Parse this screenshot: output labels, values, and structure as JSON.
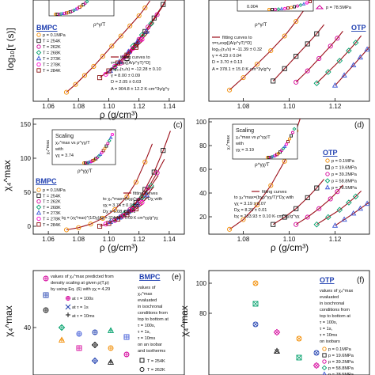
{
  "colors": {
    "fit": "#9b0f1a",
    "series": [
      "#f28c00",
      "#1a1a1a",
      "#d4009a",
      "#00a06b",
      "#3a55d6",
      "#ff00d0",
      "#8a1414",
      "#0a8a3a",
      "#00aacc"
    ]
  },
  "panels": {
    "a": {
      "sample": "BMPC",
      "xlabel": "ρ (g/cm³)",
      "ylabel": "log₁₀[τ (s)]",
      "xticks": [
        "1.06",
        "1.08",
        "1.10",
        "1.12",
        "1.14"
      ],
      "inset_xlabel": "ρ^γ/T",
      "legend": [
        "p = 0.1MPa",
        "T = 254K",
        "T = 262K",
        "T = 268K",
        "T = 273K",
        "T = 278K",
        "T = 284K"
      ],
      "fit_text": [
        "fitting curves to",
        "τ=τ₀exp[(A/ρ^γT)^D]",
        "log₁₀(τ₀/s) = -12.28 ± 0.10",
        "γ = 8.00 ± 0.09",
        "D = 2.05 ± 0.03",
        "A = 904.8 ± 12.2 K·cm^3γ/g^γ"
      ]
    },
    "b": {
      "sample": "OTP",
      "xticks": [
        "1.08",
        "1.10",
        "1.12"
      ],
      "inset_tick": "0.004",
      "inset_xlabel": "ρ^γ/T",
      "legend": [
        "p = 78.5MPa"
      ],
      "fit_text": [
        "fitting curves to",
        "τ=τ₀exp[(A/ρ^γT)^D]",
        "log₁₀(τ₀/s) = -11.39 ± 0.32",
        "γ = 4.23 ± 0.04",
        "D = 3.70 ± 0.13",
        "A = 378.1 ± 15.0 K·cm^3γ/g^γ"
      ]
    },
    "c": {
      "letter": "(c)",
      "sample": "BMPC",
      "xlabel": "ρ (g/cm³)",
      "ylabel": "χ₄^max",
      "yticks": [
        "150",
        "100",
        "50",
        "0"
      ],
      "xticks": [
        "1.06",
        "1.08",
        "1.10",
        "1.12",
        "1.14"
      ],
      "inset_title": [
        "Scaling",
        "χ₄^max vs ρ^γχ/T",
        "with",
        "γχ = 3.74"
      ],
      "inset_ylabel": "χ₄^max",
      "inset_xlabel": "ρ^γχ/T",
      "legend": [
        "p = 0.1MPa",
        "T = 254K",
        "T = 262K",
        "T = 268K",
        "T = 273K",
        "T = 278K",
        "T = 284K"
      ],
      "fit_text": [
        "fitting curves",
        "to χ₄^max=(bχρ^γχ/T)^Dχ with",
        "γχ = 3.74 ± 0.01",
        "Dχ = 6.08 ± 0.01",
        "bχ = (zχ^max)^(1/Dχ)Aχ = 324.40 ± 0.09 K·cm^γχ/g^γχ"
      ]
    },
    "d": {
      "letter": "(d)",
      "sample": "OTP",
      "xlabel": "ρ (g/cm³)",
      "yticks": [
        "100",
        "80",
        "60",
        "40",
        "20"
      ],
      "xticks": [
        "1.08",
        "1.10",
        "1.12"
      ],
      "inset_title": [
        "Scaling",
        "χ₄^max vs ρ^γχ/T",
        "with",
        "γχ = 3.19"
      ],
      "inset_ylabel": "χ₄^max",
      "inset_xlabel": "ρ^γχ/T",
      "legend": [
        "p = 0.1MPa",
        "p = 19.6MPa",
        "p = 39.2MPa",
        "p = 58.8MPa",
        "p = 78.5MPa"
      ],
      "fit_text": [
        "fitting curves",
        "to χ₄^max=(bχρ^γχ/T)^Dχ with",
        "γχ = 3.19 ± 0.07",
        "Dχ = 8.29 ± 0.01",
        "bχ = 233.93 ± 0.10 K·cm^γχ/g^γχ"
      ]
    },
    "e": {
      "letter": "(e)",
      "sample": "BMPC",
      "ylabel": "χ₄^max",
      "ytick": "40",
      "note_left": [
        "values of χ₄^max predicted from",
        "density scaling at given ρ(T,p)",
        "by using Eq. (6) with γχ = 4.29"
      ],
      "legend_left": [
        "at τ = 100s",
        "at τ = 1s",
        "at τ = 10ms"
      ],
      "note_right": [
        "values of",
        "χ₄^max",
        "evaluated",
        "in isochronal",
        "conditions from",
        "top to bottom at",
        "τ = 100s,",
        "τ = 1s,",
        "τ = 10ms",
        "on an isobar",
        "and isotherms"
      ],
      "legend_right": [
        "T = 254K",
        "T = 262K"
      ]
    },
    "f": {
      "letter": "(f)",
      "sample": "OTP",
      "ylabel": "χ₄^max",
      "yticks": [
        "100",
        "80"
      ],
      "note": [
        "values of χ₄^max",
        "evaluated",
        "in isochronal",
        "conditions from",
        "top to bottom at",
        "τ = 100s,",
        "τ = 1s,",
        "τ = 10ms",
        "on isobars"
      ],
      "legend": [
        "p = 0.1MPa",
        "p = 19.6MPa",
        "p = 39.2MPa",
        "p = 58.8MPa",
        "p = 78.5MPa"
      ]
    }
  },
  "chart_data": [
    {
      "type": "scatter",
      "panel": "a",
      "xlabel": "ρ (g/cm³)",
      "ylabel": "log₁₀[τ (s)]",
      "xlim": [
        1.05,
        1.15
      ],
      "ylim": [
        -5,
        4
      ],
      "series": [
        {
          "name": "p = 0.1MPa",
          "x": [
            1.072,
            1.078,
            1.084,
            1.09,
            1.096,
            1.102,
            1.108,
            1.114,
            1.12,
            1.124
          ],
          "y": [
            -4.2,
            -3.5,
            -2.7,
            -1.9,
            -1.0,
            -0.1,
            0.8,
            1.7,
            2.6,
            3.3
          ]
        },
        {
          "name": "T = 254K",
          "x": [
            1.112,
            1.118,
            1.124,
            1.13,
            1.136
          ],
          "y": [
            -1.2,
            0.0,
            1.2,
            2.4,
            3.6
          ]
        },
        {
          "name": "T = 262K",
          "x": [
            1.108,
            1.114,
            1.12,
            1.126,
            1.132
          ],
          "y": [
            -1.6,
            -0.6,
            0.5,
            1.6,
            2.7
          ]
        },
        {
          "name": "T = 268K",
          "x": [
            1.104,
            1.11,
            1.116,
            1.122,
            1.128
          ],
          "y": [
            -2.0,
            -1.1,
            -0.1,
            0.9,
            1.9
          ]
        },
        {
          "name": "T = 273K",
          "x": [
            1.101,
            1.107,
            1.113,
            1.119,
            1.125
          ],
          "y": [
            -2.3,
            -1.5,
            -0.6,
            0.3,
            1.2
          ]
        },
        {
          "name": "T = 278K",
          "x": [
            1.098,
            1.104,
            1.11,
            1.116,
            1.122
          ],
          "y": [
            -2.6,
            -1.9,
            -1.1,
            -0.3,
            0.5
          ]
        },
        {
          "name": "T = 284K",
          "x": [
            1.094,
            1.1,
            1.106,
            1.112,
            1.118
          ],
          "y": [
            -2.9,
            -2.3,
            -1.6,
            -0.9,
            -0.2
          ]
        }
      ]
    },
    {
      "type": "scatter",
      "panel": "b",
      "xlim": [
        1.065,
        1.135
      ],
      "ylim": [
        -6,
        3
      ],
      "series": [
        {
          "name": "p = 0.1MPa",
          "x": [
            1.074,
            1.08,
            1.086,
            1.092,
            1.098,
            1.103
          ],
          "y": [
            -5.0,
            -3.9,
            -2.7,
            -1.5,
            -0.2,
            1.1
          ]
        },
        {
          "name": "p = 19.6MPa",
          "x": [
            1.093,
            1.098,
            1.103,
            1.108,
            1.112
          ],
          "y": [
            -4.2,
            -3.1,
            -2.0,
            -0.9,
            0.0
          ]
        },
        {
          "name": "p = 39.2MPa",
          "x": [
            1.103,
            1.108,
            1.113,
            1.118,
            1.121
          ],
          "y": [
            -4.3,
            -3.3,
            -2.2,
            -1.1,
            -0.4
          ]
        },
        {
          "name": "p = 58.8MPa",
          "x": [
            1.112,
            1.117,
            1.122,
            1.126,
            1.129
          ],
          "y": [
            -4.4,
            -3.4,
            -2.4,
            -1.5,
            -0.8
          ]
        },
        {
          "name": "p = 78.5MPa",
          "x": [
            1.12,
            1.124,
            1.128,
            1.131,
            1.134
          ],
          "y": [
            -4.6,
            -3.7,
            -2.8,
            -2.1,
            -1.4
          ]
        }
      ]
    },
    {
      "type": "scatter",
      "panel": "c",
      "xlabel": "ρ (g/cm³)",
      "ylabel": "χ₄^max",
      "xlim": [
        1.05,
        1.15
      ],
      "ylim": [
        0,
        160
      ],
      "series": [
        {
          "name": "p = 0.1MPa",
          "x": [
            1.072,
            1.08,
            1.088,
            1.096,
            1.104,
            1.112,
            1.118,
            1.124
          ],
          "y": [
            6,
            9,
            14,
            22,
            34,
            52,
            72,
            100
          ]
        },
        {
          "name": "T = 254K",
          "x": [
            1.112,
            1.118,
            1.124,
            1.13,
            1.136
          ],
          "y": [
            30,
            44,
            62,
            86,
            116
          ]
        },
        {
          "name": "T = 262K",
          "x": [
            1.108,
            1.114,
            1.12,
            1.126,
            1.132
          ],
          "y": [
            24,
            34,
            47,
            64,
            85
          ]
        },
        {
          "name": "T = 268K",
          "x": [
            1.104,
            1.11,
            1.116,
            1.122,
            1.128
          ],
          "y": [
            20,
            28,
            38,
            51,
            67
          ]
        },
        {
          "name": "T = 273K",
          "x": [
            1.101,
            1.107,
            1.113,
            1.119,
            1.125
          ],
          "y": [
            17,
            23,
            31,
            41,
            54
          ]
        },
        {
          "name": "T = 278K",
          "x": [
            1.098,
            1.104,
            1.11,
            1.116,
            1.122
          ],
          "y": [
            14,
            19,
            26,
            34,
            44
          ]
        },
        {
          "name": "T = 284K",
          "x": [
            1.094,
            1.1,
            1.106,
            1.112,
            1.118
          ],
          "y": [
            11,
            15,
            21,
            27,
            35
          ]
        }
      ]
    },
    {
      "type": "scatter",
      "panel": "d",
      "xlabel": "ρ (g/cm³)",
      "xlim": [
        1.065,
        1.135
      ],
      "ylim": [
        10,
        105
      ],
      "series": [
        {
          "name": "p = 0.1MPa",
          "x": [
            1.074,
            1.08,
            1.086,
            1.092,
            1.098,
            1.103
          ],
          "y": [
            14,
            22,
            34,
            50,
            70,
            95
          ]
        },
        {
          "name": "p = 19.6MPa",
          "x": [
            1.093,
            1.098,
            1.103,
            1.108,
            1.112
          ],
          "y": [
            18,
            24,
            31,
            40,
            48
          ]
        },
        {
          "name": "p = 39.2MPa",
          "x": [
            1.103,
            1.108,
            1.113,
            1.118,
            1.121
          ],
          "y": [
            18,
            24,
            31,
            39,
            45
          ]
        },
        {
          "name": "p = 58.8MPa",
          "x": [
            1.112,
            1.117,
            1.122,
            1.126,
            1.129
          ],
          "y": [
            18,
            24,
            30,
            36,
            41
          ]
        },
        {
          "name": "p = 78.5MPa",
          "x": [
            1.12,
            1.124,
            1.128,
            1.131,
            1.134
          ],
          "y": [
            17,
            22,
            27,
            31,
            35
          ]
        }
      ]
    }
  ]
}
